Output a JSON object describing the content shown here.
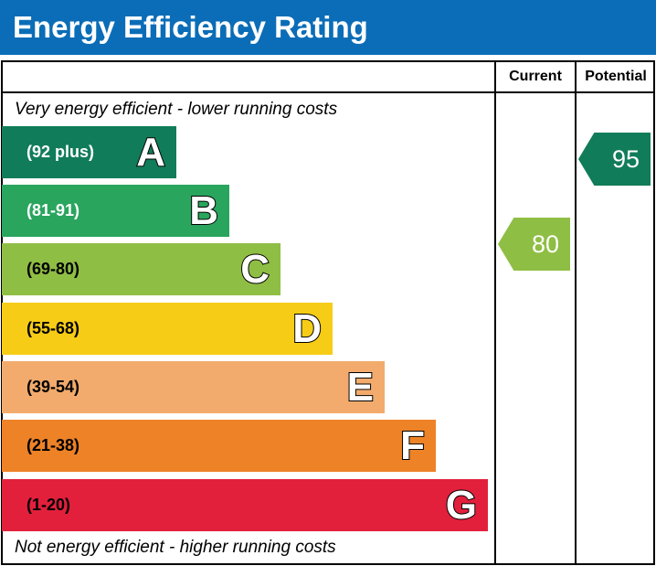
{
  "title": "Energy Efficiency Rating",
  "chart_data": {
    "type": "bar",
    "title": "Energy Efficiency Rating",
    "columns": [
      "Current",
      "Potential"
    ],
    "top_caption": "Very energy efficient - lower running costs",
    "bottom_caption": "Not energy efficient - higher running costs",
    "bands": [
      {
        "letter": "A",
        "range": "(92 plus)",
        "color": "#117c59",
        "text_color": "#ffffff"
      },
      {
        "letter": "B",
        "range": "(81-91)",
        "color": "#2aa55e",
        "text_color": "#ffffff"
      },
      {
        "letter": "C",
        "range": "(69-80)",
        "color": "#8fbe44",
        "text_color": "#000000"
      },
      {
        "letter": "D",
        "range": "(55-68)",
        "color": "#f6cc17",
        "text_color": "#000000"
      },
      {
        "letter": "E",
        "range": "(39-54)",
        "color": "#f2ab6c",
        "text_color": "#000000"
      },
      {
        "letter": "F",
        "range": "(21-38)",
        "color": "#ed8227",
        "text_color": "#000000"
      },
      {
        "letter": "G",
        "range": "(1-20)",
        "color": "#e2203c",
        "text_color": "#000000"
      }
    ],
    "current": {
      "value": "80",
      "band": "C",
      "color": "#8fbe44"
    },
    "potential": {
      "value": "95",
      "band": "A",
      "color": "#117c59"
    }
  }
}
